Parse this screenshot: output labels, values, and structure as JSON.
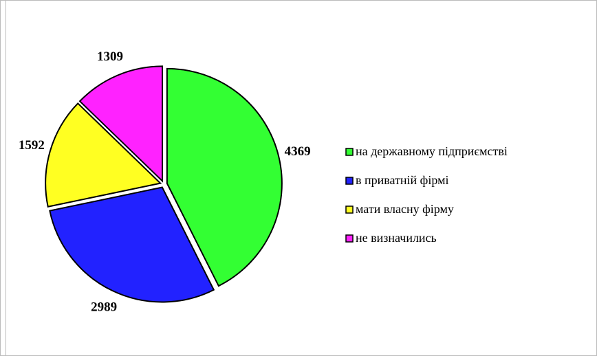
{
  "chart_data": {
    "type": "pie",
    "categories": [
      "на державному підприємстві",
      "в приватній фірмі",
      "мати власну фірму",
      "не визначились"
    ],
    "values": [
      4369,
      2989,
      1592,
      1309
    ],
    "colors": [
      "#33ff33",
      "#2222ff",
      "#ffff22",
      "#ff22ff"
    ],
    "legend": "right"
  }
}
